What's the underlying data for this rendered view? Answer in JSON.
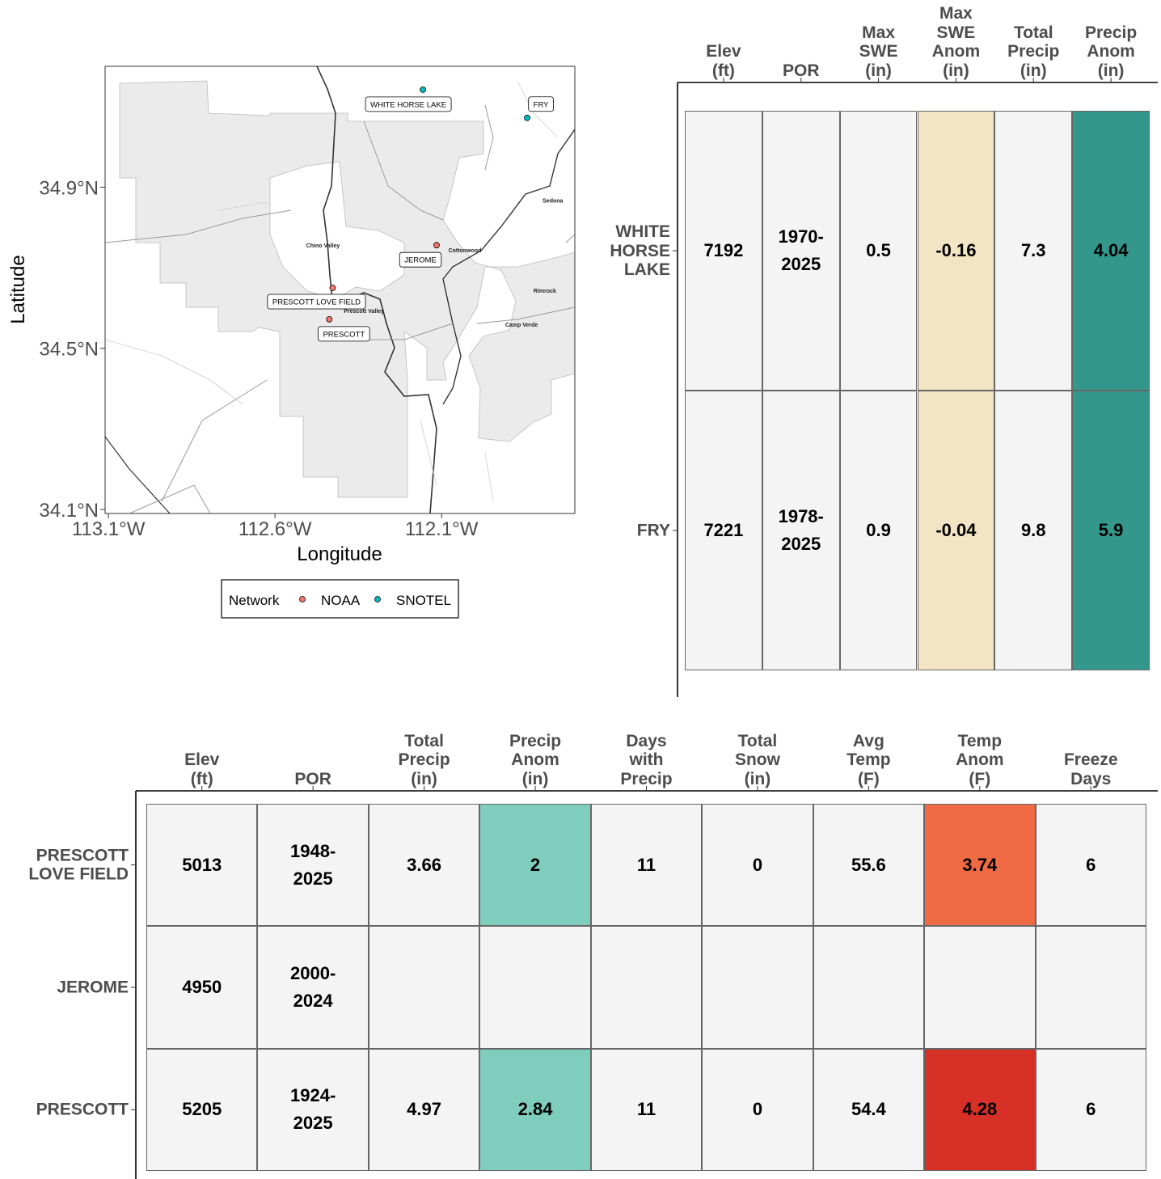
{
  "chart_data": [
    {
      "type": "scatter",
      "x_label": "Longitude",
      "y_label": "Latitude",
      "xlim": [
        -113.11,
        -111.7
      ],
      "ylim": [
        34.09,
        35.2
      ],
      "xticks": [
        {
          "value": -113.1,
          "label": "113.1°W"
        },
        {
          "value": -112.6,
          "label": "112.6°W"
        },
        {
          "value": -112.1,
          "label": "112.1°W"
        }
      ],
      "yticks": [
        {
          "value": 34.1,
          "label": "34.1°N"
        },
        {
          "value": 34.5,
          "label": "34.5°N"
        },
        {
          "value": 34.9,
          "label": "34.9°N"
        }
      ],
      "legend_title": "Network",
      "legend_position": "bottom",
      "series": [
        {
          "name": "NOAA",
          "color": "#f8766d",
          "x": [
            -112.115,
            -112.427,
            -112.437
          ],
          "y": [
            34.756,
            34.65,
            34.572
          ],
          "labels": [
            "JEROME",
            "PRESCOTT LOVE FIELD",
            "PRESCOTT"
          ]
        },
        {
          "name": "SNOTEL",
          "color": "#00bfc4",
          "x": [
            -112.156,
            -111.843
          ],
          "y": [
            35.142,
            35.072
          ],
          "labels": [
            "WHITE HORSE LAKE",
            "FRY"
          ]
        }
      ],
      "annotations": [
        {
          "text": "Chino Valley",
          "x": -112.456,
          "y": 34.756
        },
        {
          "text": "Cottonwood",
          "x": -112.03,
          "y": 34.744
        },
        {
          "text": "Sedona",
          "x": -111.766,
          "y": 34.868
        },
        {
          "text": "Rimrock",
          "x": -111.79,
          "y": 34.644
        },
        {
          "text": "Camp Verde",
          "x": -111.86,
          "y": 34.56
        },
        {
          "text": "Prescott Valley",
          "x": -112.333,
          "y": 34.594
        }
      ]
    },
    {
      "type": "table",
      "columns": [
        "Elev\n(ft)",
        "POR",
        "Max\nSWE\n(in)",
        "Max\nSWE\nAnom\n(in)",
        "Total\nPrecip\n(in)",
        "Precip\nAnom\n(in)"
      ],
      "rows": [
        "WHITE\nHORSE\nLAKE",
        "FRY"
      ],
      "values": [
        [
          7192,
          "1970-\n2025",
          0.5,
          -0.16,
          7.3,
          4.04
        ],
        [
          7221,
          "1978-\n2025",
          0.9,
          -0.04,
          9.8,
          5.9
        ]
      ],
      "cell_colors": [
        [
          "#f4f4f4",
          "#f4f4f4",
          "#f4f4f4",
          "#f3e5c3",
          "#f4f4f4",
          "#33978c"
        ],
        [
          "#f4f4f4",
          "#f4f4f4",
          "#f4f4f4",
          "#f3e5c3",
          "#f4f4f4",
          "#33978c"
        ]
      ]
    },
    {
      "type": "table",
      "columns": [
        "Elev\n(ft)",
        "POR",
        "Total\nPrecip\n(in)",
        "Precip\nAnom\n(in)",
        "Days\nwith\nPrecip",
        "Total\nSnow\n(in)",
        "Avg\nTemp\n(F)",
        "Temp\nAnom\n(F)",
        "Freeze\nDays"
      ],
      "rows": [
        "PRESCOTT\nLOVE FIELD",
        "JEROME",
        "PRESCOTT"
      ],
      "values": [
        [
          5013,
          "1948-\n2025",
          3.66,
          2,
          11,
          0,
          55.6,
          3.74,
          6
        ],
        [
          4950,
          "2000-\n2024",
          null,
          null,
          null,
          null,
          null,
          null,
          null
        ],
        [
          5205,
          "1924-\n2025",
          4.97,
          2.84,
          11,
          0,
          54.4,
          4.28,
          6
        ]
      ],
      "cell_colors": [
        [
          "#f4f4f4",
          "#f4f4f4",
          "#f4f4f4",
          "#7ecdbd",
          "#f4f4f4",
          "#f4f4f4",
          "#f4f4f4",
          "#f06a43",
          "#f4f4f4"
        ],
        [
          "#f4f4f4",
          "#f4f4f4",
          "#f4f4f4",
          "#f4f4f4",
          "#f4f4f4",
          "#f4f4f4",
          "#f4f4f4",
          "#f4f4f4",
          "#f4f4f4"
        ],
        [
          "#f4f4f4",
          "#f4f4f4",
          "#f4f4f4",
          "#7ecdbd",
          "#f4f4f4",
          "#f4f4f4",
          "#f4f4f4",
          "#d73027",
          "#f4f4f4"
        ]
      ]
    }
  ]
}
